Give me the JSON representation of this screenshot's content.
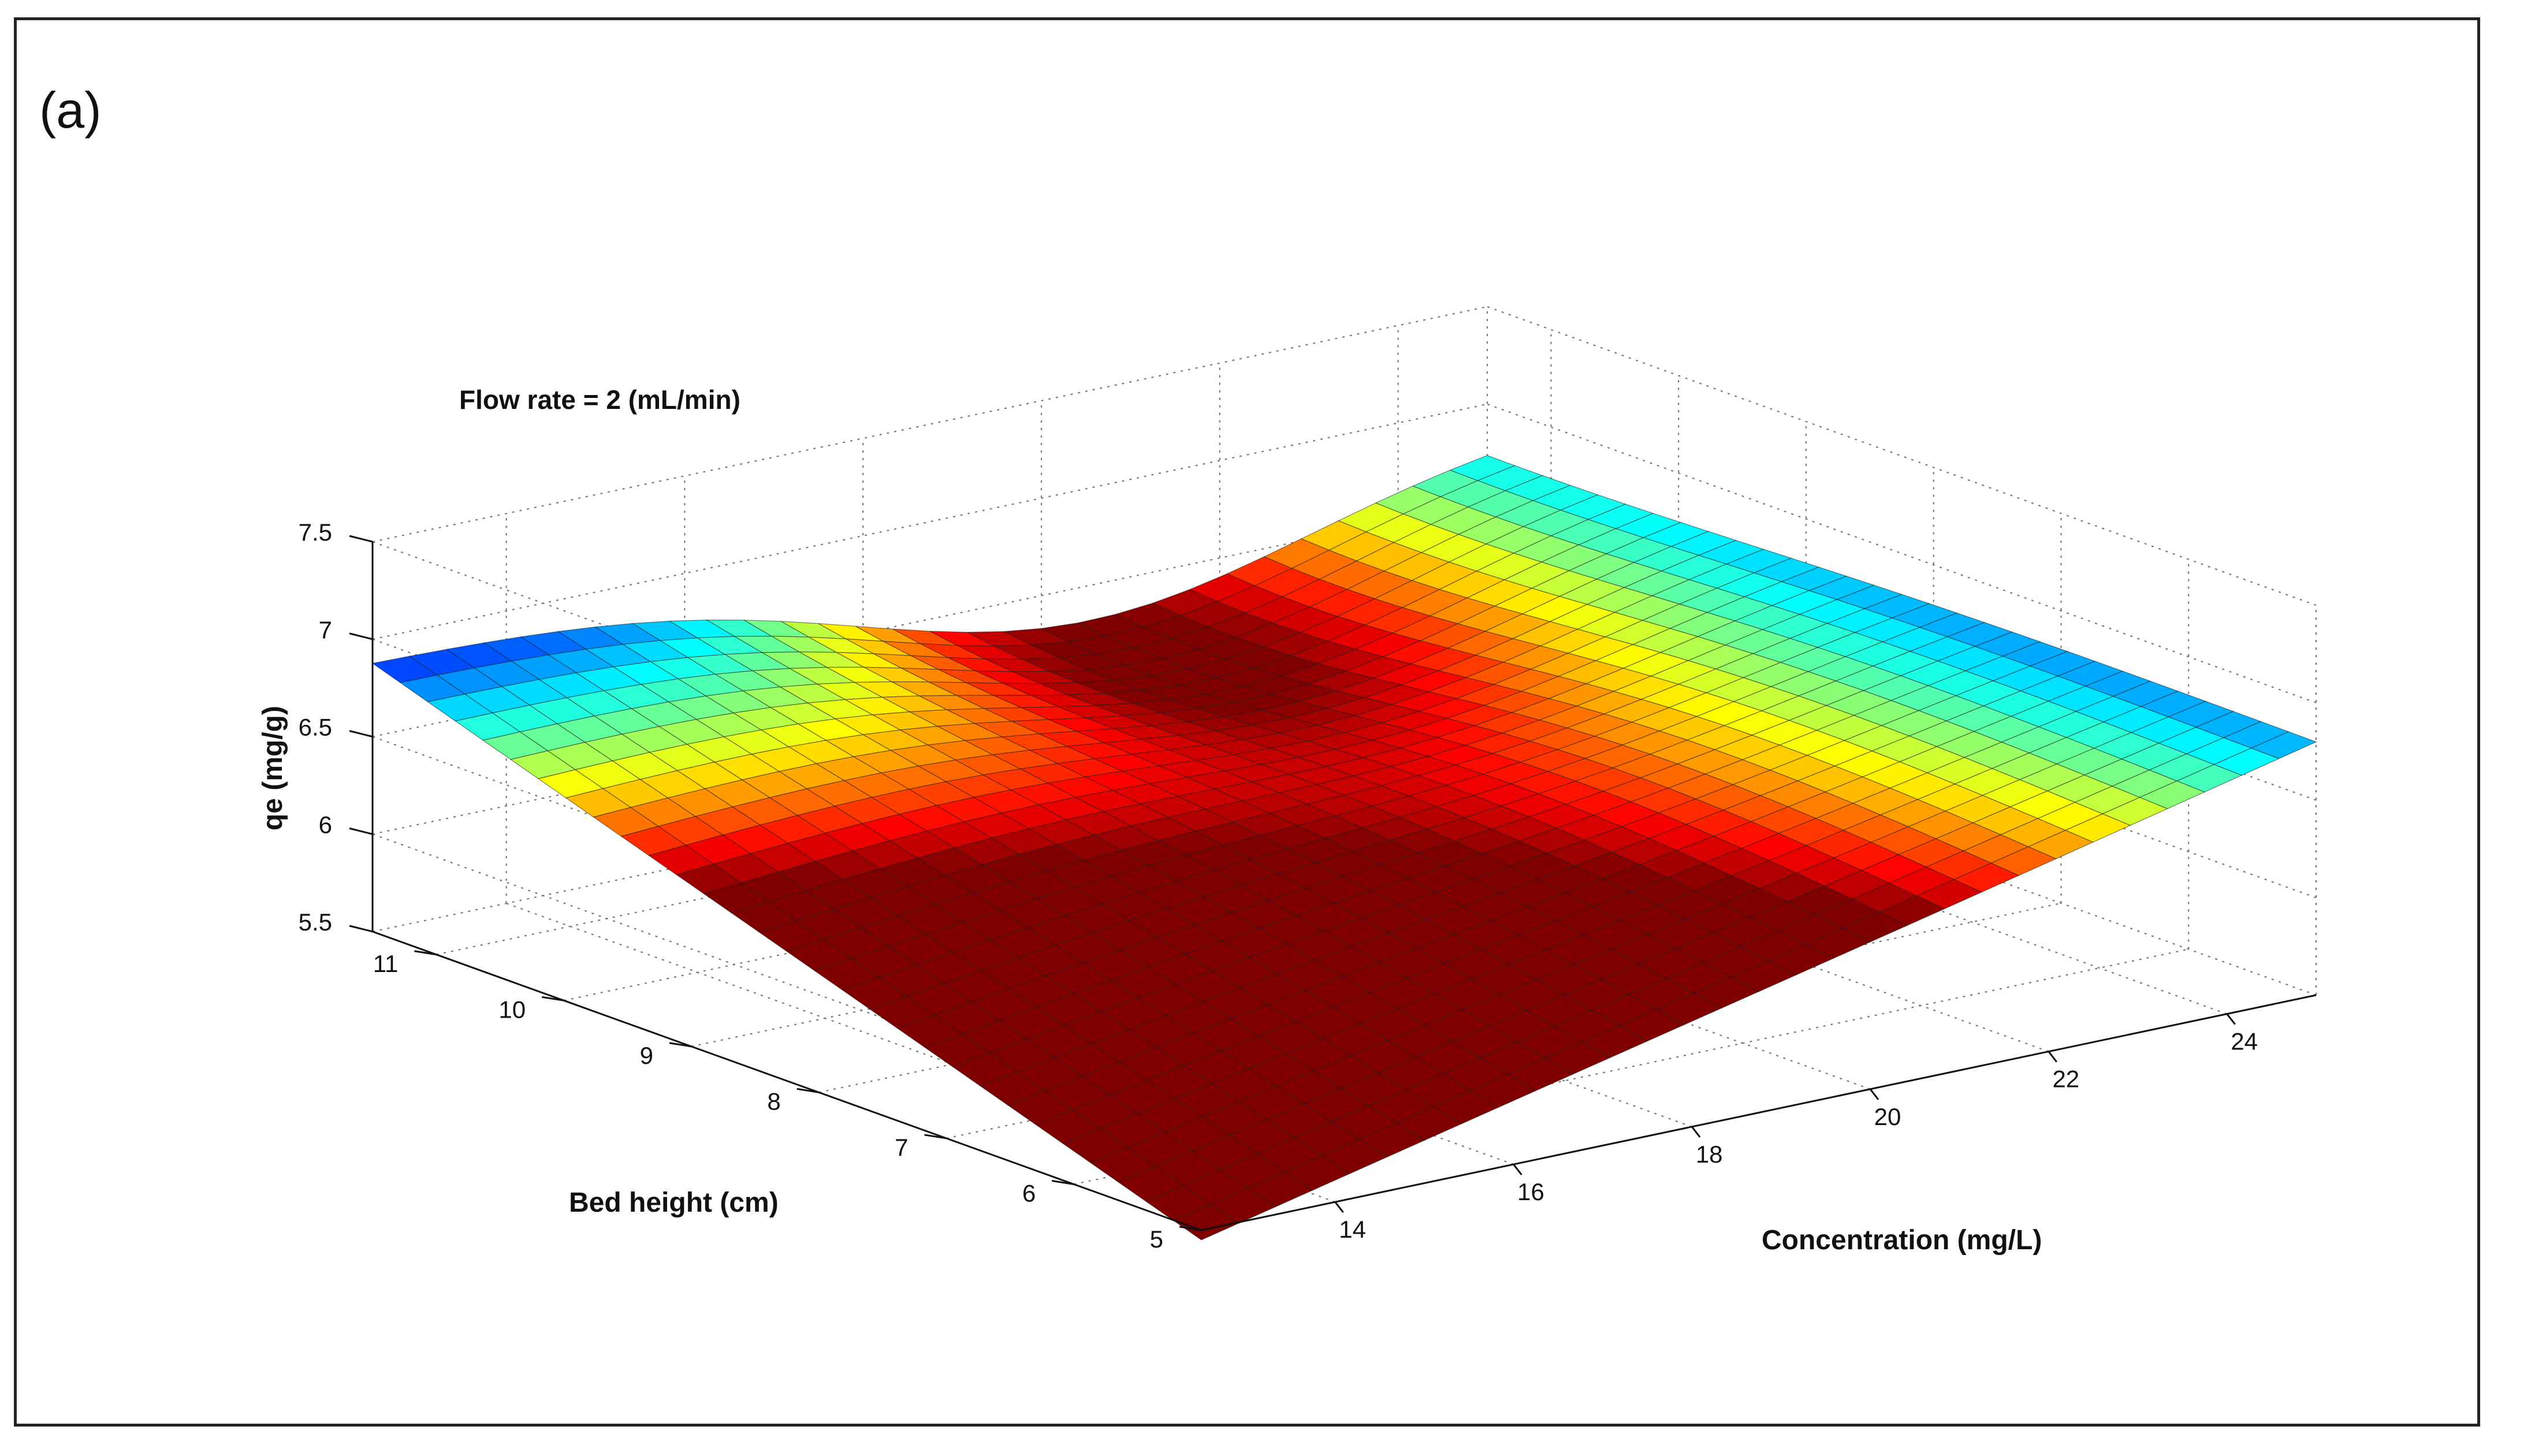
{
  "panel_label": "(a)",
  "chart_data": {
    "type": "surface",
    "title": "Flow rate = 2 (mL/min)",
    "xlabel": "Concentration (mg/L)",
    "ylabel": "Bed height (cm)",
    "zlabel": "qe (mg/g)",
    "xlim": [
      12.5,
      25
    ],
    "ylim": [
      5,
      11.5
    ],
    "zlim": [
      5.5,
      7.5
    ],
    "x_ticks": [
      14,
      16,
      18,
      20,
      22,
      24
    ],
    "y_ticks": [
      5,
      6,
      7,
      8,
      9,
      10,
      11
    ],
    "z_ticks": [
      5.5,
      6,
      6.5,
      7,
      7.5
    ],
    "x_tick_labels": [
      "14",
      "16",
      "18",
      "20",
      "22",
      "24"
    ],
    "y_tick_labels": [
      "5",
      "6",
      "7",
      "8",
      "9",
      "10",
      "11"
    ],
    "z_tick_labels": [
      "5.5",
      "6",
      "6.5",
      "7",
      "7.5"
    ],
    "grid": true,
    "colormap": "jet",
    "surface_corners": {
      "c12.5_h5": 5.45,
      "c25_h5": 6.8,
      "c12.5_h11.5": 6.88,
      "c25_h11.5": 6.85
    },
    "surface_min_point": {
      "concentration": 20.5,
      "bed_height": 11.5,
      "qe": 6.32
    }
  }
}
